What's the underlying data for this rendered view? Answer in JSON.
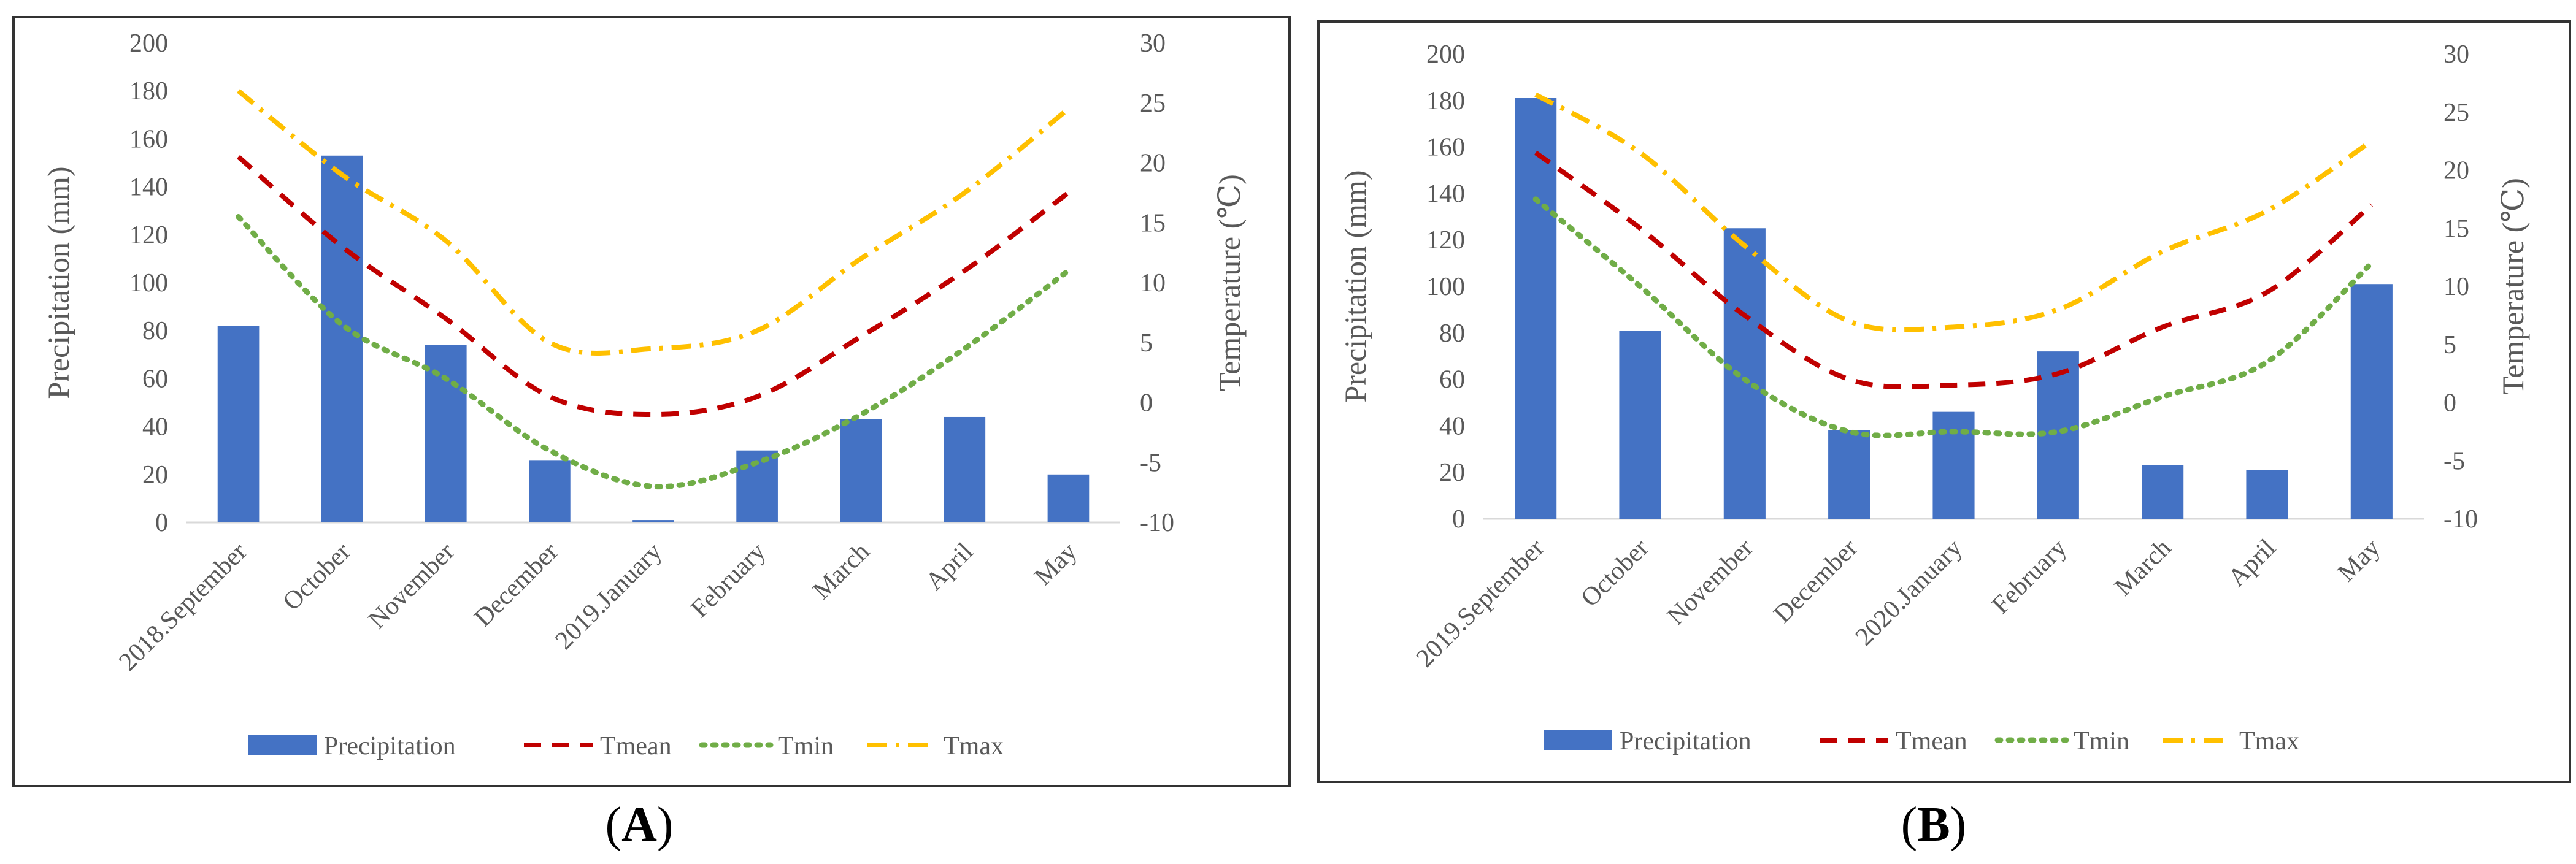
{
  "panels": [
    {
      "label_letter": "A",
      "label_open": "(",
      "label_close": ")",
      "chart_data": {
        "type": "bar",
        "categories": [
          "2018.September",
          "October",
          "November",
          "December",
          "2019.January",
          "February",
          "March",
          "April",
          "May"
        ],
        "series": [
          {
            "name": "Precipitation",
            "kind": "bar",
            "axis": "left",
            "color": "#4472C4",
            "values": [
              82,
              153,
              74,
              26,
              1,
              30,
              43,
              44,
              20
            ]
          },
          {
            "name": "Tmean",
            "kind": "line",
            "style": "dashed",
            "axis": "right",
            "color": "#C00000",
            "values": [
              20.5,
              13,
              7,
              0.5,
              -1,
              0.5,
              5.5,
              11,
              17.5
            ]
          },
          {
            "name": "Tmin",
            "kind": "line",
            "style": "dotted",
            "axis": "right",
            "color": "#70AD47",
            "values": [
              15.5,
              6.5,
              2,
              -4,
              -7,
              -5,
              -1,
              4.5,
              11
            ]
          },
          {
            "name": "Tmax",
            "kind": "line",
            "style": "dashdot",
            "axis": "right",
            "color": "#FFC000",
            "values": [
              26,
              19,
              13.5,
              5,
              4.5,
              6,
              12,
              17.5,
              24.5
            ]
          }
        ],
        "ylabel": "Precipitation (mm)",
        "y2label": "Temperature (℃)",
        "ylim": [
          0,
          200
        ],
        "y2lim": [
          -10,
          30
        ],
        "yticks": [
          "0",
          "20",
          "40",
          "60",
          "80",
          "100",
          "120",
          "140",
          "160",
          "180",
          "200"
        ],
        "y2ticks": [
          "-10",
          "-5",
          "0",
          "5",
          "10",
          "15",
          "20",
          "25",
          "30"
        ],
        "grid": false,
        "legend": "bottom"
      }
    },
    {
      "label_letter": "B",
      "label_open": "(",
      "label_close": ")",
      "chart_data": {
        "type": "bar",
        "categories": [
          "2019.September",
          "October",
          "November",
          "December",
          "2020.January",
          "February",
          "March",
          "April",
          "May"
        ],
        "series": [
          {
            "name": "Precipitation",
            "kind": "bar",
            "axis": "left",
            "color": "#4472C4",
            "values": [
              181,
              81,
              125,
              38,
              46,
              72,
              23,
              21,
              101
            ]
          },
          {
            "name": "Tmean",
            "kind": "line",
            "style": "dashed",
            "axis": "right",
            "color": "#C00000",
            "values": [
              21.5,
              15,
              7.5,
              2,
              1.5,
              2.5,
              6.5,
              9.5,
              17
            ]
          },
          {
            "name": "Tmin",
            "kind": "line",
            "style": "dotted",
            "axis": "right",
            "color": "#70AD47",
            "values": [
              17.5,
              10,
              2,
              -2.5,
              -2.5,
              -2.5,
              0.5,
              3.5,
              12
            ]
          },
          {
            "name": "Tmax",
            "kind": "line",
            "style": "dashdot",
            "axis": "right",
            "color": "#FFC000",
            "values": [
              26.5,
              21.5,
              13.5,
              7,
              6.5,
              8,
              13,
              16.5,
              22.5
            ]
          }
        ],
        "ylabel": "Precipitation (mm)",
        "y2label": "Temperature (℃)",
        "ylim": [
          0,
          200
        ],
        "y2lim": [
          -10,
          30
        ],
        "yticks": [
          "0",
          "20",
          "40",
          "60",
          "80",
          "100",
          "120",
          "140",
          "160",
          "180",
          "200"
        ],
        "y2ticks": [
          "-10",
          "-5",
          "0",
          "5",
          "10",
          "15",
          "20",
          "25",
          "30"
        ],
        "grid": false,
        "legend": "bottom"
      }
    }
  ]
}
